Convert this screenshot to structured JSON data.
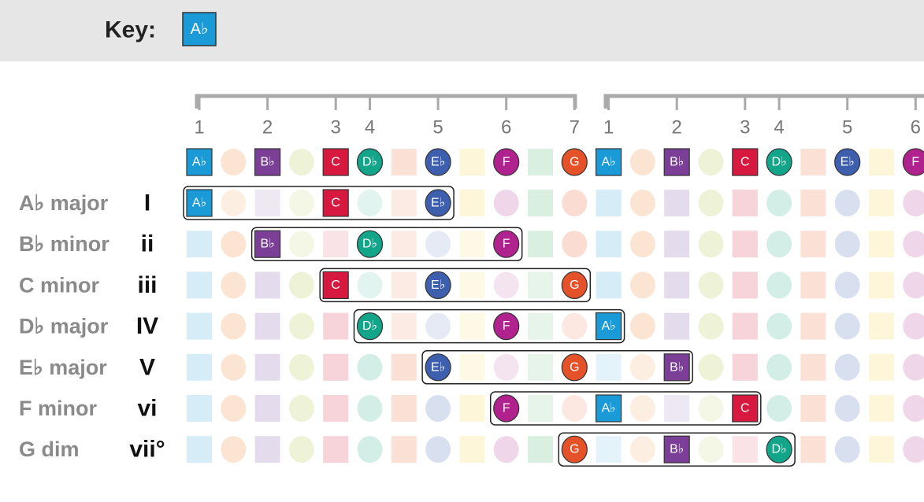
{
  "header": {
    "key_label": "Key:",
    "key": "A♭"
  },
  "degrees": [
    "1",
    "2",
    "3",
    "4",
    "5",
    "6",
    "7",
    "1",
    "2",
    "3",
    "4",
    "5",
    "6"
  ],
  "scale": [
    {
      "note": "A♭",
      "color": "#1a9ad6"
    },
    {
      "note": "B♭",
      "color": "#7b3f98"
    },
    {
      "note": "C",
      "color": "#d7193f"
    },
    {
      "note": "D♭",
      "color": "#12a58a"
    },
    {
      "note": "E♭",
      "color": "#3e5fae"
    },
    {
      "note": "F",
      "color": "#b0238f"
    },
    {
      "note": "G",
      "color": "#e5522a"
    },
    {
      "note": "A♭",
      "color": "#1a9ad6"
    },
    {
      "note": "B♭",
      "color": "#7b3f98"
    },
    {
      "note": "C",
      "color": "#d7193f"
    },
    {
      "note": "D♭",
      "color": "#12a58a"
    },
    {
      "note": "E♭",
      "color": "#3e5fae"
    },
    {
      "note": "F",
      "color": "#b0238f"
    }
  ],
  "chords": [
    {
      "name": "A♭ major",
      "numeral": "I"
    },
    {
      "name": "B♭ minor",
      "numeral": "ii"
    },
    {
      "name": "C minor",
      "numeral": "iii"
    },
    {
      "name": "D♭ major",
      "numeral": "IV"
    },
    {
      "name": "E♭ major",
      "numeral": "V"
    },
    {
      "name": "F minor",
      "numeral": "vi"
    },
    {
      "name": "G dim",
      "numeral": "vii°"
    }
  ]
}
